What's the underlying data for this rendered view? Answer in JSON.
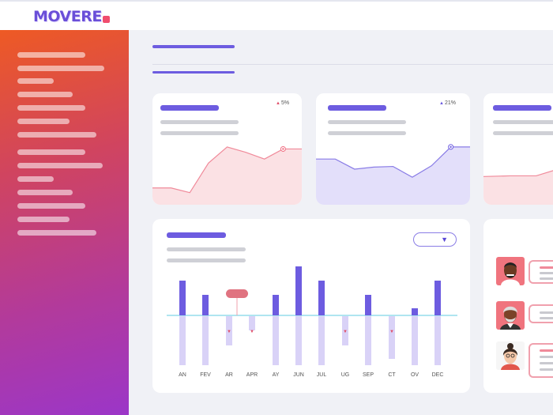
{
  "app": {
    "logo_text": "MOVERE"
  },
  "kpi_cards": [
    {
      "change": "5%",
      "direction": "up",
      "color": "#f06a7e",
      "trend": [
        0.25,
        0.25,
        0.18,
        0.62,
        0.86,
        0.78,
        0.68,
        0.83,
        0.83
      ]
    },
    {
      "change": "21%",
      "direction": "up",
      "color": "#6d5ce0",
      "trend": [
        0.68,
        0.68,
        0.53,
        0.56,
        0.57,
        0.41,
        0.58,
        0.86,
        0.86
      ]
    },
    {
      "change": "",
      "direction": "up",
      "color": "#f06a7e",
      "trend": [
        0.42,
        0.43,
        0.43,
        0.55
      ]
    }
  ],
  "chart_data": {
    "type": "bar",
    "categories": [
      "AN",
      "FEV",
      "AR",
      "APR",
      "AY",
      "JUN",
      "JUL",
      "UG",
      "SEP",
      "CT",
      "OV",
      "DEC"
    ],
    "series": [
      {
        "values": [
          44,
          26,
          0,
          0,
          26,
          62,
          44,
          0,
          26,
          0,
          9,
          44
        ]
      },
      {
        "values": [
          -62,
          -62,
          -37,
          -18,
          -62,
          -62,
          -62,
          -37,
          -62,
          -54,
          -62,
          -62
        ]
      }
    ],
    "markers": [
      "",
      "",
      "▼",
      "▼",
      "",
      "",
      "",
      "▼",
      "",
      "▼",
      "",
      ""
    ],
    "ylim": [
      -70,
      70
    ],
    "grid": false,
    "highlight_category": "AR"
  },
  "colors": {
    "accent": "#6d5ce0",
    "accent_light": "#d9d2f7",
    "alert": "#e0506a",
    "baseline": "#7fd5e6"
  },
  "people": [
    {
      "avatar": "person-1"
    },
    {
      "avatar": "person-2"
    },
    {
      "avatar": "person-3"
    }
  ]
}
